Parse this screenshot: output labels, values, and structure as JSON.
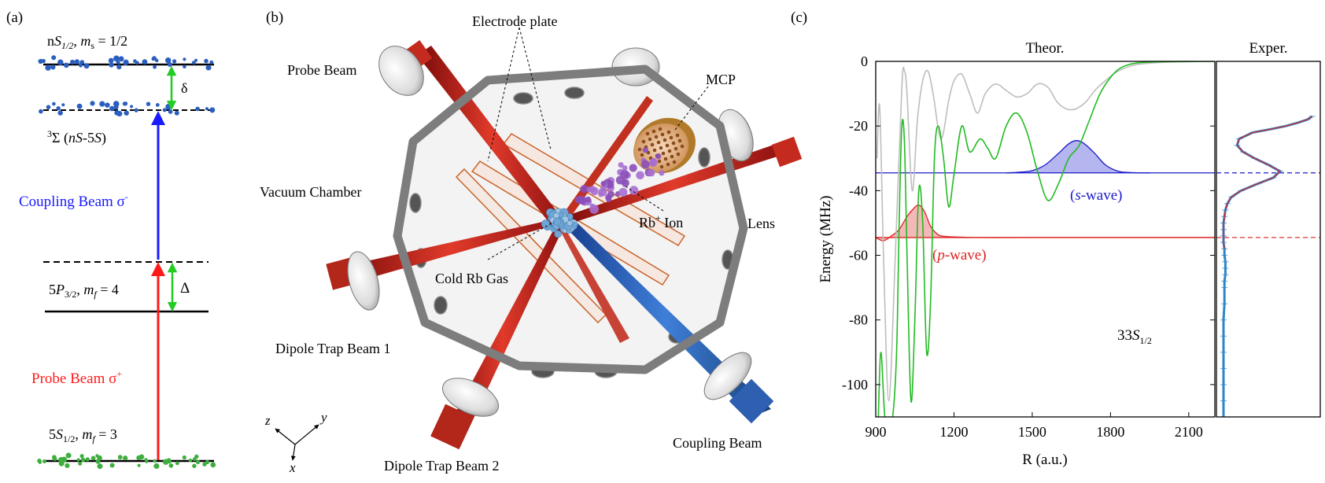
{
  "panel_a": {
    "label": "(a)",
    "top_level": "nS1/2, ms = 1/2",
    "top_level_parts": {
      "n": "n",
      "S": "S",
      "sub": "1/2",
      "m": "m",
      "m_sub": "s",
      "value": " = 1/2"
    },
    "delta_small": "δ",
    "molecular_state": {
      "prefix": "3",
      "sigma": "Σ (",
      "ns": "nS",
      "dash": "-5",
      "s5": "S",
      "close": ")"
    },
    "coupling_beam": "Coupling Beam σ",
    "coupling_sup": "-",
    "mid_level": {
      "base": "5",
      "P": "P",
      "sub": "3/2",
      "m": "m",
      "m_sub": "f",
      "value": " = 4"
    },
    "delta_big": "Δ",
    "probe_beam": "Probe Beam σ",
    "probe_sup": "+",
    "ground_level": {
      "base": "5",
      "S": "S",
      "sub": "1/2",
      "m": "m",
      "m_sub": "f",
      "value": " = 3"
    },
    "colors": {
      "coupling": "#1a1aff",
      "probe": "#ff1a1a",
      "delta": "#22cc22",
      "top_atoms": "#2b5fbf",
      "ground_atoms": "#3fae3f"
    }
  },
  "panel_b": {
    "label": "(b)",
    "labels": {
      "electrode_plate": "Electrode plate",
      "probe_beam": "Probe Beam",
      "mcp": "MCP",
      "vacuum_chamber": "Vacuum Chamber",
      "rb_ion_prefix": "Rb",
      "rb_ion_sup": "+",
      "rb_ion_suffix": " Ion",
      "lens": "Lens",
      "cold_rb_gas": "Cold Rb Gas",
      "dipole_trap_1": "Dipole Trap Beam 1",
      "dipole_trap_2": "Dipole Trap Beam 2",
      "coupling_beam": "Coupling Beam"
    },
    "axes": {
      "z": "z",
      "y": "y",
      "x": "x"
    }
  },
  "panel_c": {
    "label": "(c)",
    "theory_title": "Theor.",
    "exp_title": "Exper.",
    "ylabel": "Energy (MHz)",
    "xlabel": "R (a.u.)",
    "state_label": {
      "base": "33",
      "S": "S",
      "sub": "1/2"
    },
    "s_wave": {
      "open": "(",
      "letter": "s",
      "rest": "-wave)"
    },
    "p_wave": {
      "open": "(",
      "letter": "p",
      "rest": "-wave)"
    },
    "xticks": [
      "900",
      "1200",
      "1500",
      "1800",
      "2100"
    ],
    "yticks": [
      "0",
      "-20",
      "-40",
      "-60",
      "-80",
      "-100"
    ]
  },
  "chart_data": {
    "type": "line",
    "title": "Theor.",
    "xlabel": "R (a.u.)",
    "ylabel": "Energy (MHz)",
    "xlim": [
      900,
      2200
    ],
    "ylim": [
      -110,
      0
    ],
    "xticks": [
      900,
      1200,
      1500,
      1800,
      2100
    ],
    "yticks": [
      0,
      -20,
      -40,
      -60,
      -80,
      -100
    ],
    "series": [
      {
        "color": "#bdbdbd",
        "x": [
          905,
          915,
          930,
          950,
          975,
          1000,
          1010,
          1020,
          1040,
          1060,
          1080,
          1100,
          1120,
          1150,
          1180,
          1200,
          1230,
          1260,
          1290,
          1320,
          1360,
          1400,
          1440,
          1480,
          1520,
          1560,
          1600,
          1650,
          1700,
          1740,
          1780,
          1830,
          1900,
          2000,
          2100,
          2200
        ],
        "y": [
          -30,
          -14,
          -60,
          -105,
          -60,
          -8,
          -3,
          -10,
          -40,
          -18,
          -6,
          -3,
          -10,
          -24,
          -12,
          -6,
          -4,
          -10,
          -16,
          -10,
          -7,
          -9,
          -11,
          -10,
          -7,
          -8,
          -13,
          -15,
          -13,
          -9,
          -6,
          -3,
          -1,
          -0.3,
          -0.1,
          0
        ]
      },
      {
        "color": "#22bb22",
        "x": [
          910,
          920,
          935,
          950,
          965,
          980,
          990,
          1000,
          1010,
          1020,
          1035,
          1050,
          1065,
          1080,
          1095,
          1110,
          1125,
          1140,
          1160,
          1180,
          1200,
          1230,
          1260,
          1300,
          1330,
          1360,
          1400,
          1440,
          1480,
          1520,
          1560,
          1600,
          1640,
          1680,
          1720,
          1760,
          1800,
          1840,
          1900,
          2000,
          2200
        ],
        "y": [
          -110,
          -90,
          -110,
          -110,
          -110,
          -90,
          -50,
          -20,
          -25,
          -60,
          -105,
          -80,
          -40,
          -50,
          -90,
          -75,
          -30,
          -20,
          -30,
          -45,
          -35,
          -20,
          -28,
          -24,
          -27,
          -30,
          -20,
          -16,
          -22,
          -34,
          -43,
          -38,
          -30,
          -26,
          -18,
          -10,
          -5,
          -2,
          -0.5,
          -0.1,
          0
        ]
      },
      {
        "name": "s-wave",
        "color": "#1a1acc",
        "baseline": -34.5,
        "x": [
          1400,
          1450,
          1500,
          1550,
          1600,
          1640,
          1670,
          1700,
          1740,
          1780,
          1830,
          1880,
          1950
        ],
        "y": [
          -34.5,
          -34.3,
          -33.8,
          -32,
          -28.5,
          -25.5,
          -24.5,
          -25.5,
          -28.5,
          -32,
          -34,
          -34.4,
          -34.5
        ]
      },
      {
        "name": "p-wave",
        "color": "#dd2222",
        "baseline": -54.5,
        "x": [
          900,
          930,
          960,
          990,
          1020,
          1040,
          1060,
          1075,
          1090,
          1110,
          1130,
          1150,
          1200,
          1300,
          1500,
          2200
        ],
        "y": [
          -54.5,
          -55.5,
          -54,
          -52,
          -48,
          -46,
          -44.5,
          -45,
          -47,
          -51,
          -53,
          -54,
          -54.3,
          -54.5,
          -54.5,
          -54.5
        ]
      }
    ],
    "annotations": [
      "(s-wave)",
      "(p-wave)",
      "33S1/2"
    ]
  },
  "chart_data_exp": {
    "type": "line",
    "title": "Exper.",
    "ylim": [
      -110,
      0
    ],
    "series": [
      {
        "name": "data",
        "color": "#2e86c8",
        "y": [
          -17,
          -18,
          -19,
          -20,
          -21,
          -22,
          -24,
          -26,
          -28,
          -30,
          -32,
          -34,
          -36,
          -38,
          -40,
          -42,
          -44,
          -46,
          -48,
          -50,
          -52,
          -54,
          -56,
          -58,
          -60,
          -62,
          -64,
          -66,
          -68,
          -70,
          -75,
          -80,
          -85,
          -90,
          -95,
          -100,
          -105,
          -110
        ],
        "x": [
          0.95,
          0.9,
          0.8,
          0.68,
          0.52,
          0.34,
          0.2,
          0.18,
          0.24,
          0.36,
          0.5,
          0.62,
          0.55,
          0.38,
          0.22,
          0.12,
          0.08,
          0.06,
          0.05,
          0.04,
          0.04,
          0.04,
          0.04,
          0.05,
          0.05,
          0.06,
          0.06,
          0.06,
          0.05,
          0.05,
          0.05,
          0.04,
          0.04,
          0.04,
          0.04,
          0.04,
          0.04,
          0.04
        ]
      }
    ],
    "reference_lines": [
      -34.5,
      -54.5
    ]
  }
}
